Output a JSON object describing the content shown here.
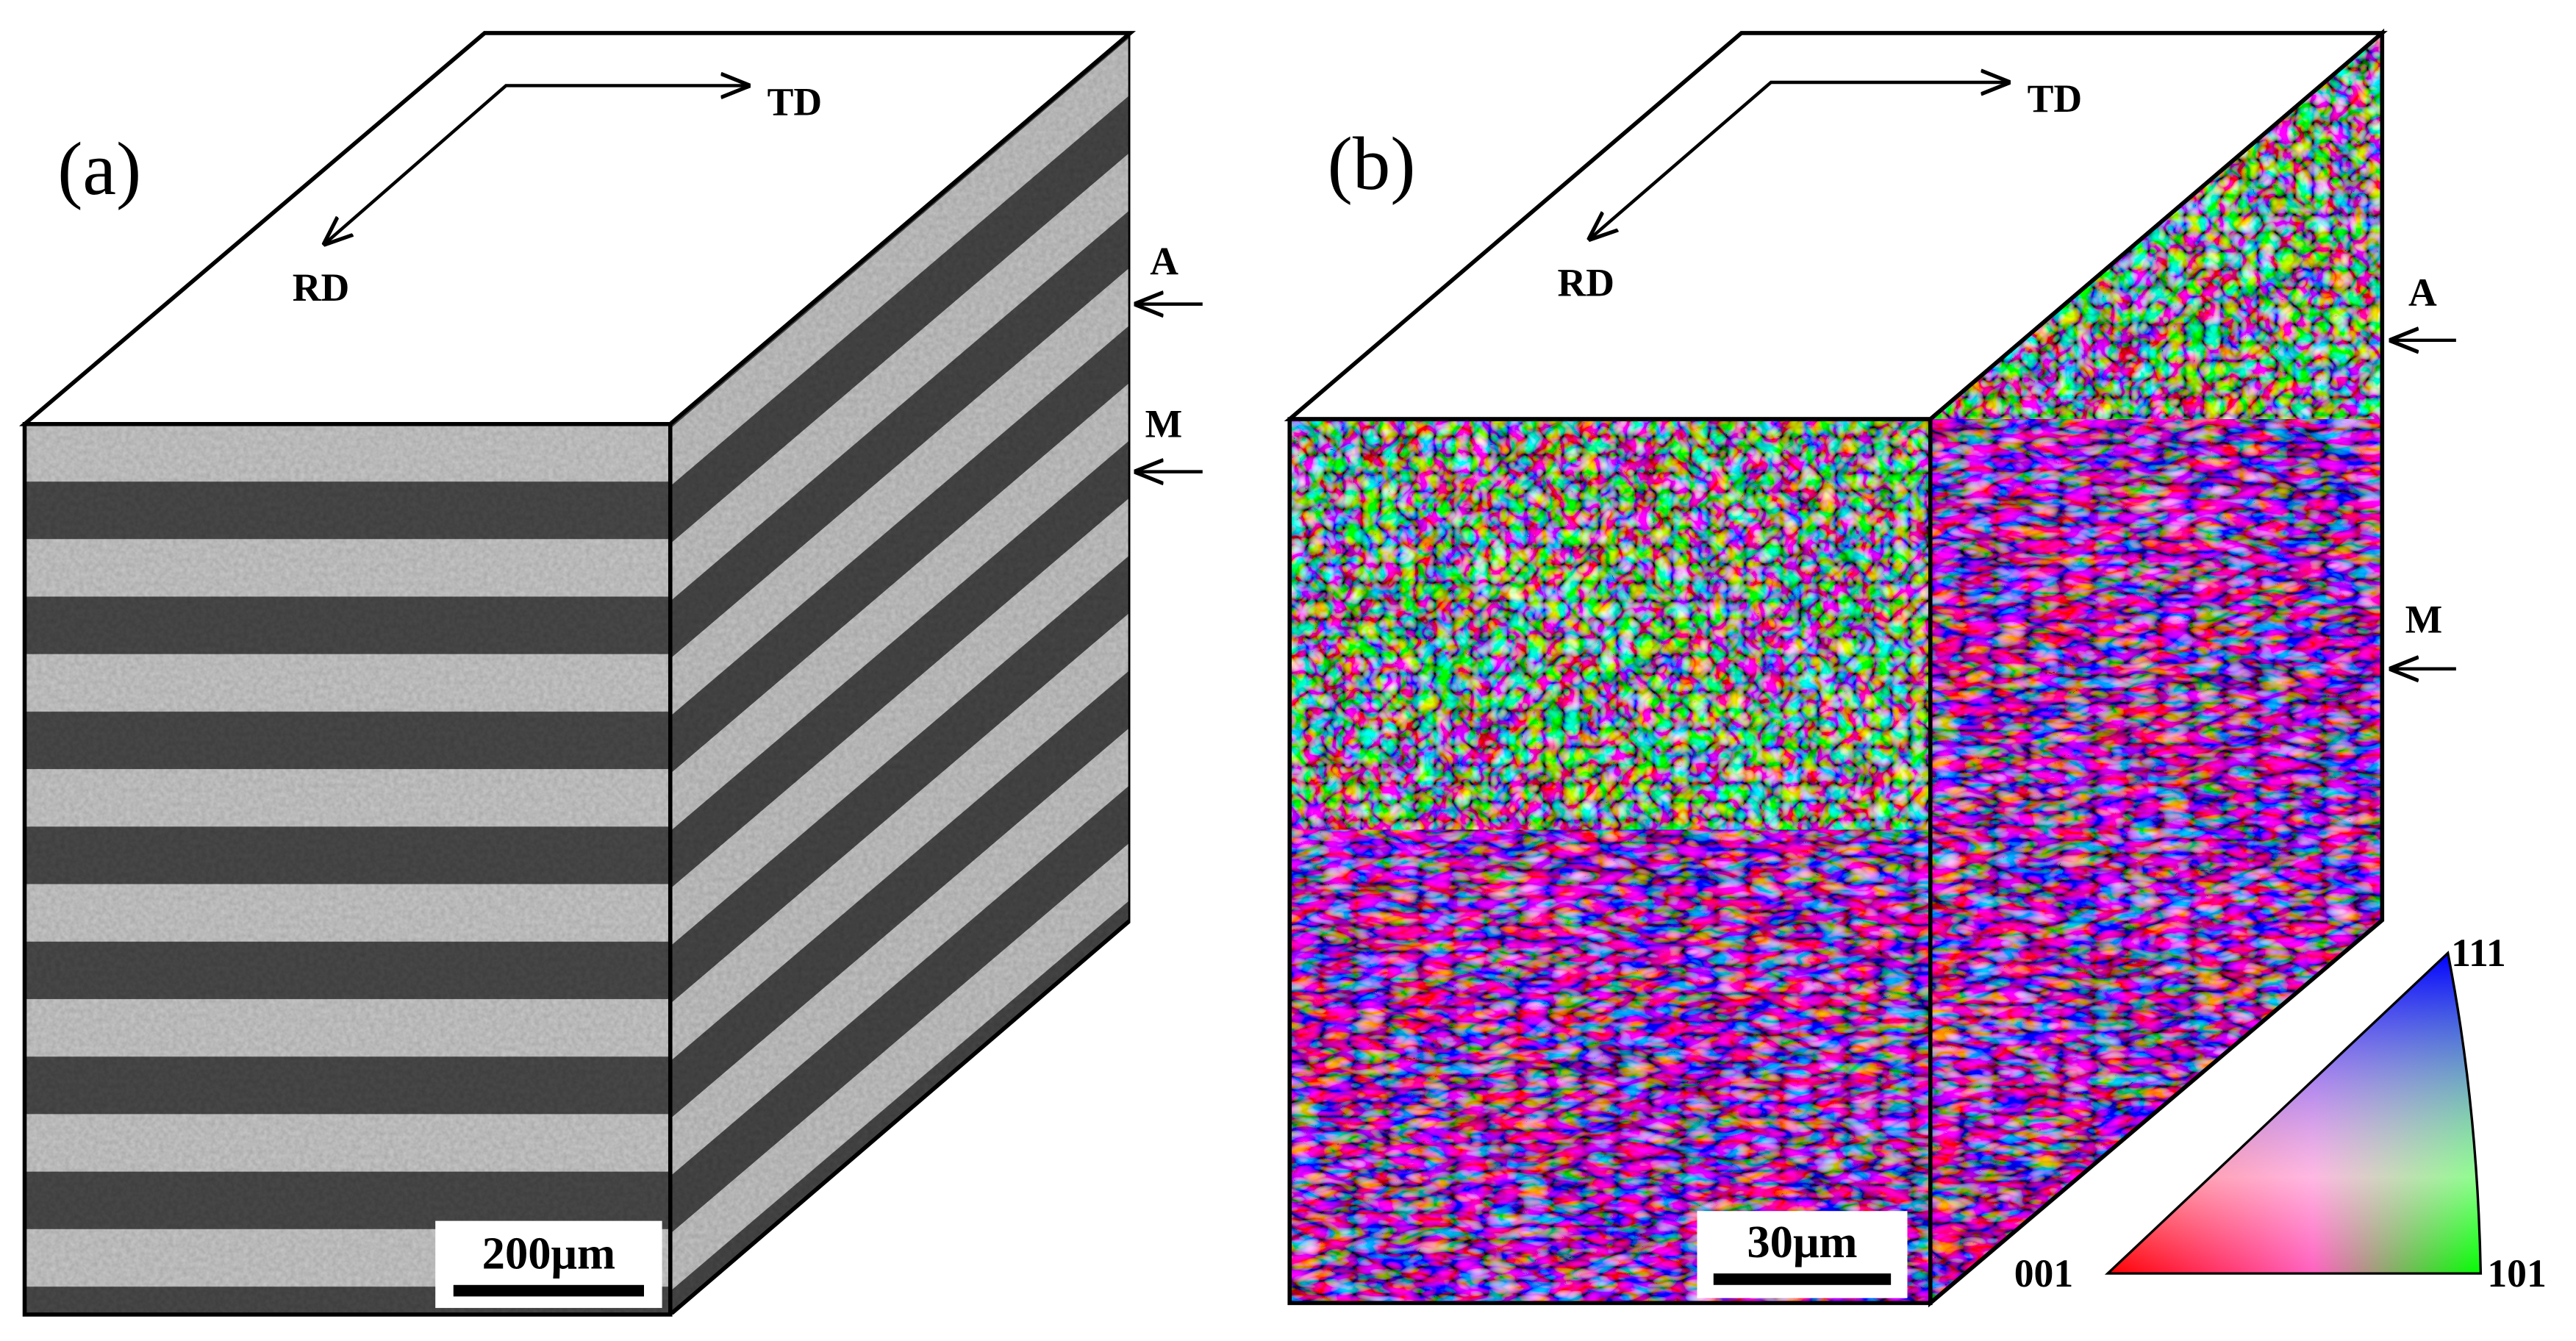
{
  "panels": [
    {
      "label": "(a)",
      "td": "TD",
      "rd": "RD",
      "markers": [
        "A",
        "M"
      ],
      "scale_bar": "200μm"
    },
    {
      "label": "(b)",
      "td": "TD",
      "rd": "RD",
      "markers": [
        "A",
        "M"
      ],
      "scale_bar": "30μm"
    }
  ],
  "legend": {
    "top": "111",
    "left": "001",
    "right": "101"
  }
}
